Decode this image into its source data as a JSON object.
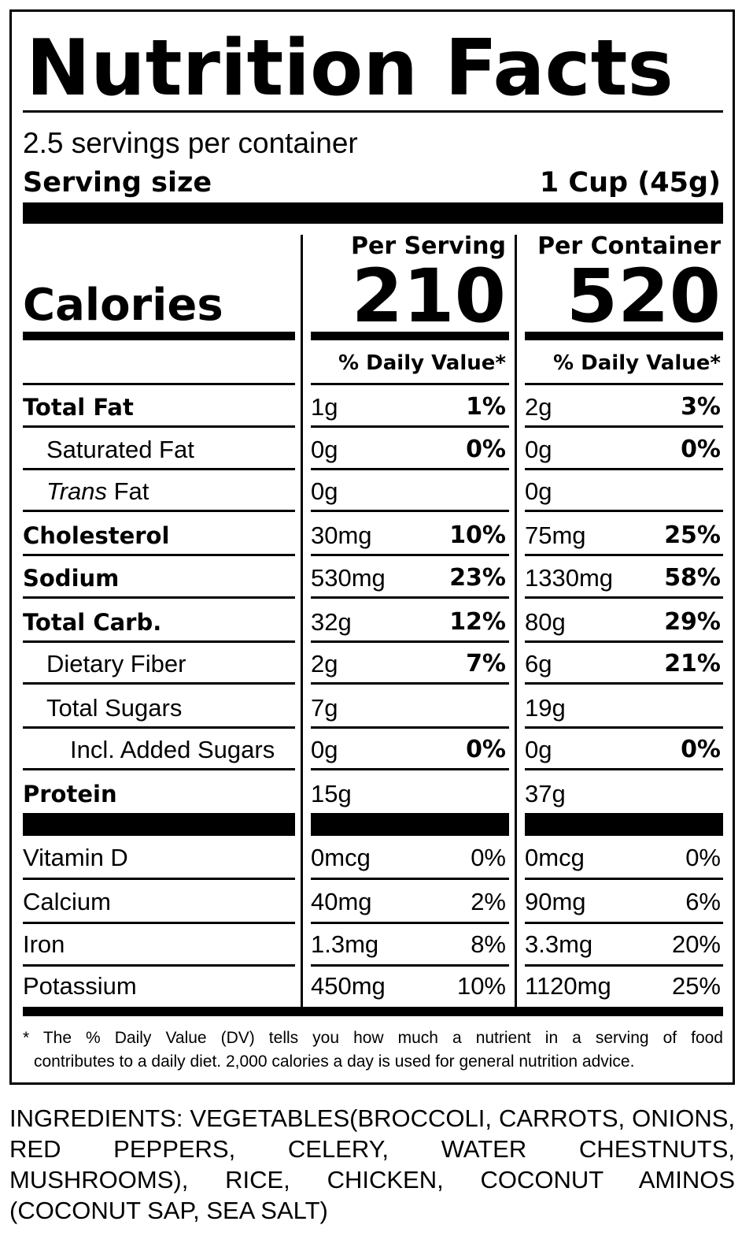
{
  "title": "Nutrition Facts",
  "servings_per_container": "2.5 servings per container",
  "serving_size": {
    "label": "Serving size",
    "value": "1 Cup (45g)"
  },
  "columns": {
    "per_serving": {
      "header": "Per Serving",
      "calories": "210",
      "dv_header": "% Daily Value*"
    },
    "per_container": {
      "header": "Per Container",
      "calories": "520",
      "dv_header": "% Daily Value*"
    }
  },
  "calories_label": "Calories",
  "nutrients": [
    {
      "name": "Total Fat",
      "style": "bold",
      "indent": 0,
      "serving_amt": "1g",
      "serving_pct": "1%",
      "container_amt": "2g",
      "container_pct": "3%"
    },
    {
      "name": "Saturated Fat",
      "style": "normal",
      "indent": 1,
      "serving_amt": "0g",
      "serving_pct": "0%",
      "container_amt": "0g",
      "container_pct": "0%"
    },
    {
      "name": "Fat",
      "name_prefix_italic": "Trans",
      "style": "normal",
      "indent": 1,
      "serving_amt": "0g",
      "serving_pct": "",
      "container_amt": "0g",
      "container_pct": ""
    },
    {
      "name": "Cholesterol",
      "style": "bold",
      "indent": 0,
      "serving_amt": "30mg",
      "serving_pct": "10%",
      "container_amt": "75mg",
      "container_pct": "25%"
    },
    {
      "name": "Sodium",
      "style": "bold",
      "indent": 0,
      "serving_amt": "530mg",
      "serving_pct": "23%",
      "container_amt": "1330mg",
      "container_pct": "58%"
    },
    {
      "name": "Total Carb.",
      "style": "bold",
      "indent": 0,
      "serving_amt": "32g",
      "serving_pct": "12%",
      "container_amt": "80g",
      "container_pct": "29%"
    },
    {
      "name": "Dietary Fiber",
      "style": "normal",
      "indent": 1,
      "serving_amt": "2g",
      "serving_pct": "7%",
      "container_amt": "6g",
      "container_pct": "21%"
    },
    {
      "name": "Total Sugars",
      "style": "normal",
      "indent": 1,
      "serving_amt": "7g",
      "serving_pct": "",
      "container_amt": "19g",
      "container_pct": ""
    },
    {
      "name": "Incl. Added Sugars",
      "style": "normal",
      "indent": 2,
      "serving_amt": "0g",
      "serving_pct": "0%",
      "container_amt": "0g",
      "container_pct": "0%"
    },
    {
      "name": "Protein",
      "style": "bold",
      "indent": 0,
      "serving_amt": "15g",
      "serving_pct": "",
      "container_amt": "37g",
      "container_pct": ""
    }
  ],
  "vitamins": [
    {
      "name": "Vitamin D",
      "serving_amt": "0mcg",
      "serving_pct": "0%",
      "container_amt": "0mcg",
      "container_pct": "0%"
    },
    {
      "name": "Calcium",
      "serving_amt": "40mg",
      "serving_pct": "2%",
      "container_amt": "90mg",
      "container_pct": "6%"
    },
    {
      "name": "Iron",
      "serving_amt": "1.3mg",
      "serving_pct": "8%",
      "container_amt": "3.3mg",
      "container_pct": "20%"
    },
    {
      "name": "Potassium",
      "serving_amt": "450mg",
      "serving_pct": "10%",
      "container_amt": "1120mg",
      "container_pct": "25%"
    }
  ],
  "footnote": {
    "line1": "* The % Daily Value (DV) tells you how much a nutrient in a serving of food",
    "line2": "contributes to a daily diet. 2,000 calories a day is used for general nutrition advice."
  },
  "ingredients": "INGREDIENTS: VEGETABLES(BROCCOLI, CARROTS, ONIONS, RED PEPPERS, CELERY, WATER CHESTNUTS, MUSHROOMS), RICE, CHICKEN, COCONUT AMINOS (COCONUT SAP, SEA SALT)"
}
